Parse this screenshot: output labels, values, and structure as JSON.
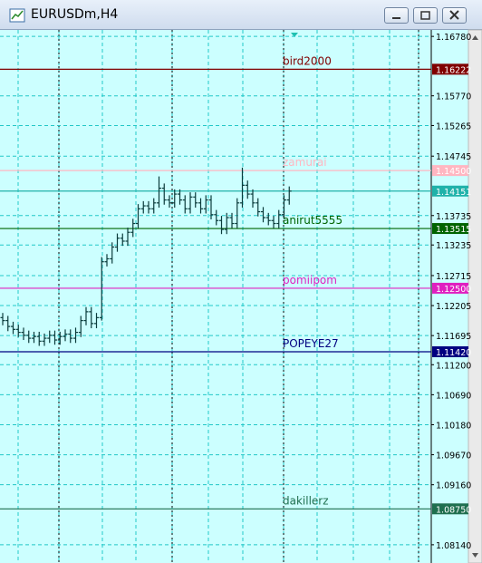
{
  "window": {
    "title": "EURUSDm,H4"
  },
  "chart_data": {
    "type": "ohlc",
    "color": "#0b3b3b",
    "open": [
      1.12,
      1.1195,
      1.1185,
      1.118,
      1.1175,
      1.117,
      1.1165,
      1.1168,
      1.116,
      1.1165,
      1.117,
      1.1162,
      1.1168,
      1.1172,
      1.1165,
      1.1175,
      1.1195,
      1.121,
      1.119,
      1.12,
      1.1295,
      1.13,
      1.132,
      1.1335,
      1.133,
      1.1345,
      1.136,
      1.1385,
      1.139,
      1.1385,
      1.1395,
      1.142,
      1.14,
      1.1395,
      1.141,
      1.14,
      1.1385,
      1.1405,
      1.1395,
      1.1385,
      1.14,
      1.1375,
      1.1365,
      1.135,
      1.137,
      1.136,
      1.1395,
      1.1425,
      1.141,
      1.1395,
      1.138,
      1.137,
      1.1365,
      1.136,
      1.1375,
      1.14
    ],
    "high": [
      1.1208,
      1.1203,
      1.1193,
      1.1188,
      1.1183,
      1.1178,
      1.1176,
      1.1176,
      1.1173,
      1.1178,
      1.1178,
      1.1176,
      1.118,
      1.118,
      1.1183,
      1.1203,
      1.1218,
      1.1218,
      1.1208,
      1.1303,
      1.1308,
      1.1328,
      1.1343,
      1.1343,
      1.1353,
      1.1368,
      1.1393,
      1.1398,
      1.1398,
      1.1403,
      1.144,
      1.1428,
      1.1408,
      1.1418,
      1.1418,
      1.1408,
      1.1413,
      1.1413,
      1.1403,
      1.1408,
      1.1408,
      1.1383,
      1.1373,
      1.1378,
      1.1378,
      1.1403,
      1.1455,
      1.1433,
      1.1418,
      1.1403,
      1.1388,
      1.1378,
      1.1373,
      1.1383,
      1.1408,
      1.1423
    ],
    "low": [
      1.1187,
      1.1177,
      1.1172,
      1.1167,
      1.1162,
      1.1157,
      1.1157,
      1.1152,
      1.1152,
      1.1157,
      1.1154,
      1.1154,
      1.116,
      1.1157,
      1.1157,
      1.1167,
      1.1187,
      1.1182,
      1.1182,
      1.1195,
      1.1287,
      1.1292,
      1.1312,
      1.1322,
      1.1322,
      1.1337,
      1.1352,
      1.1377,
      1.1377,
      1.1377,
      1.1387,
      1.1392,
      1.1387,
      1.1387,
      1.1392,
      1.1377,
      1.1377,
      1.1387,
      1.1377,
      1.1377,
      1.1367,
      1.1357,
      1.1342,
      1.1342,
      1.1352,
      1.1352,
      1.1387,
      1.1402,
      1.1387,
      1.1372,
      1.1362,
      1.1357,
      1.1352,
      1.1352,
      1.1367,
      1.1392
    ],
    "close": [
      1.1195,
      1.1185,
      1.118,
      1.1175,
      1.117,
      1.1165,
      1.1168,
      1.116,
      1.1165,
      1.117,
      1.1162,
      1.1168,
      1.1172,
      1.1165,
      1.1175,
      1.1195,
      1.121,
      1.119,
      1.12,
      1.1295,
      1.13,
      1.132,
      1.1335,
      1.133,
      1.1345,
      1.136,
      1.1385,
      1.139,
      1.1385,
      1.1395,
      1.142,
      1.14,
      1.1395,
      1.141,
      1.14,
      1.1385,
      1.1405,
      1.1395,
      1.1385,
      1.14,
      1.1375,
      1.1365,
      1.135,
      1.137,
      1.136,
      1.1395,
      1.1425,
      1.141,
      1.1395,
      1.138,
      1.137,
      1.1365,
      1.136,
      1.1375,
      1.14,
      1.1415
    ],
    "ylim": [
      1.0783,
      1.1689
    ],
    "yticks": [
      {
        "value": 1.1678,
        "label": "1.16780"
      },
      {
        "value": 1.1577,
        "label": "1.15770"
      },
      {
        "value": 1.15265,
        "label": "1.15265"
      },
      {
        "value": 1.14745,
        "label": "1.14745"
      },
      {
        "value": 1.13735,
        "label": "1.13735"
      },
      {
        "value": 1.13235,
        "label": "1.13235"
      },
      {
        "value": 1.12715,
        "label": "1.12715"
      },
      {
        "value": 1.12205,
        "label": "1.12205"
      },
      {
        "value": 1.11695,
        "label": "1.11695"
      },
      {
        "value": 1.112,
        "label": "1.11200"
      },
      {
        "value": 1.1069,
        "label": "1.10690"
      },
      {
        "value": 1.1018,
        "label": "1.10180"
      },
      {
        "value": 1.0967,
        "label": "1.09670"
      },
      {
        "value": 1.0916,
        "label": "1.09160"
      },
      {
        "value": 1.0814,
        "label": "1.08140"
      }
    ],
    "grid": true,
    "levels": [
      {
        "name": "bird2000",
        "value": 1.16222,
        "label": "1.16222",
        "color": "#800000"
      },
      {
        "name": "zamurai",
        "value": 1.145,
        "label": "1.14500",
        "color": "#ffb6c1"
      },
      {
        "value": 1.14151,
        "label": "1.14151",
        "color": "#20b2aa"
      },
      {
        "name": "anirut5555",
        "value": 1.13515,
        "label": "1.13515",
        "color": "#006400"
      },
      {
        "name": "pomiipom",
        "value": 1.125,
        "label": "1.12500",
        "color": "#e020c0"
      },
      {
        "name": "POPEYE27",
        "value": 1.1142,
        "label": "1.11420",
        "color": "#000080"
      },
      {
        "name": "dakillerz",
        "value": 1.0875,
        "label": "1.08750",
        "color": "#1f6f4f"
      }
    ]
  }
}
